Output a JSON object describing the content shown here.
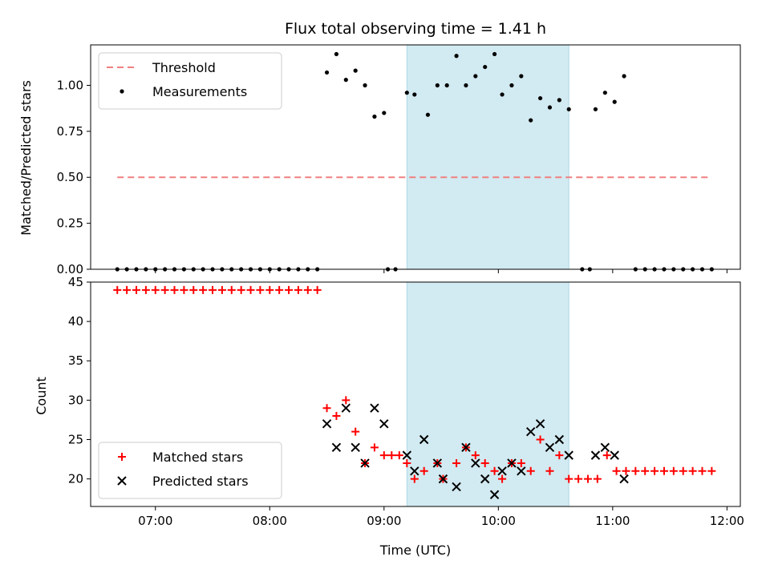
{
  "chart_data": [
    {
      "type": "scatter",
      "title": "Flux total observing time = 1.41 h",
      "xlabel": "",
      "ylabel": "Matched/Predicted stars",
      "xlim": [
        "06:26",
        "12:07"
      ],
      "ylim": [
        0,
        1.22
      ],
      "yticks": [
        "0.00",
        "0.25",
        "0.50",
        "0.75",
        "1.00"
      ],
      "grid": false,
      "legend_position": "top-left",
      "shaded_interval": {
        "start": "09:12",
        "end": "10:37",
        "color": "#add8e6"
      },
      "threshold": {
        "name": "Threshold",
        "value": 0.5,
        "x_start": "06:40",
        "x_end": "11:52",
        "style": "dashed",
        "color": "#f08080"
      },
      "series": [
        {
          "name": "Measurements",
          "marker": "dot",
          "color": "#000000",
          "points": [
            [
              "06:40",
              0
            ],
            [
              "06:45",
              0
            ],
            [
              "06:50",
              0
            ],
            [
              "06:55",
              0
            ],
            [
              "07:00",
              0
            ],
            [
              "07:05",
              0
            ],
            [
              "07:10",
              0
            ],
            [
              "07:15",
              0
            ],
            [
              "07:20",
              0
            ],
            [
              "07:25",
              0
            ],
            [
              "07:30",
              0
            ],
            [
              "07:35",
              0
            ],
            [
              "07:40",
              0
            ],
            [
              "07:45",
              0
            ],
            [
              "07:50",
              0
            ],
            [
              "07:55",
              0
            ],
            [
              "08:00",
              0
            ],
            [
              "08:05",
              0
            ],
            [
              "08:10",
              0
            ],
            [
              "08:15",
              0
            ],
            [
              "08:20",
              0
            ],
            [
              "08:25",
              0
            ],
            [
              "08:30",
              1.07
            ],
            [
              "08:35",
              1.17
            ],
            [
              "08:40",
              1.03
            ],
            [
              "08:45",
              1.08
            ],
            [
              "08:50",
              1.0
            ],
            [
              "08:55",
              0.83
            ],
            [
              "09:00",
              0.85
            ],
            [
              "09:02",
              0
            ],
            [
              "09:06",
              0
            ],
            [
              "09:12",
              0.96
            ],
            [
              "09:16",
              0.95
            ],
            [
              "09:23",
              0.84
            ],
            [
              "09:28",
              1.0
            ],
            [
              "09:33",
              1.0
            ],
            [
              "09:38",
              1.16
            ],
            [
              "09:43",
              1.0
            ],
            [
              "09:48",
              1.05
            ],
            [
              "09:53",
              1.1
            ],
            [
              "09:58",
              1.17
            ],
            [
              "10:02",
              0.95
            ],
            [
              "10:07",
              1.0
            ],
            [
              "10:12",
              1.05
            ],
            [
              "10:17",
              0.81
            ],
            [
              "10:22",
              0.93
            ],
            [
              "10:27",
              0.88
            ],
            [
              "10:32",
              0.92
            ],
            [
              "10:37",
              0.87
            ],
            [
              "10:44",
              0
            ],
            [
              "10:48",
              0
            ],
            [
              "10:51",
              0.87
            ],
            [
              "10:56",
              0.96
            ],
            [
              "11:01",
              0.91
            ],
            [
              "11:06",
              1.05
            ],
            [
              "11:12",
              0
            ],
            [
              "11:17",
              0
            ],
            [
              "11:22",
              0
            ],
            [
              "11:27",
              0
            ],
            [
              "11:32",
              0
            ],
            [
              "11:37",
              0
            ],
            [
              "11:42",
              0
            ],
            [
              "11:47",
              0
            ],
            [
              "11:52",
              0
            ]
          ]
        }
      ]
    },
    {
      "type": "scatter",
      "title": "",
      "xlabel": "Time (UTC)",
      "ylabel": "Count",
      "xlim": [
        "06:26",
        "12:07"
      ],
      "ylim": [
        16.5,
        45
      ],
      "xticks": [
        "07:00",
        "08:00",
        "09:00",
        "10:00",
        "11:00",
        "12:00"
      ],
      "yticks": [
        "20",
        "25",
        "30",
        "35",
        "40",
        "45"
      ],
      "grid": false,
      "legend_position": "bottom-left",
      "shaded_interval": {
        "start": "09:12",
        "end": "10:37",
        "color": "#add8e6"
      },
      "series": [
        {
          "name": "Matched stars",
          "marker": "plus",
          "color": "#ff0000",
          "points": [
            [
              "06:40",
              44
            ],
            [
              "06:45",
              44
            ],
            [
              "06:50",
              44
            ],
            [
              "06:55",
              44
            ],
            [
              "07:00",
              44
            ],
            [
              "07:05",
              44
            ],
            [
              "07:10",
              44
            ],
            [
              "07:15",
              44
            ],
            [
              "07:20",
              44
            ],
            [
              "07:25",
              44
            ],
            [
              "07:30",
              44
            ],
            [
              "07:35",
              44
            ],
            [
              "07:40",
              44
            ],
            [
              "07:45",
              44
            ],
            [
              "07:50",
              44
            ],
            [
              "07:55",
              44
            ],
            [
              "08:00",
              44
            ],
            [
              "08:05",
              44
            ],
            [
              "08:10",
              44
            ],
            [
              "08:15",
              44
            ],
            [
              "08:20",
              44
            ],
            [
              "08:25",
              44
            ],
            [
              "08:30",
              29
            ],
            [
              "08:35",
              28
            ],
            [
              "08:40",
              30
            ],
            [
              "08:45",
              26
            ],
            [
              "08:50",
              22
            ],
            [
              "08:55",
              24
            ],
            [
              "09:00",
              23
            ],
            [
              "09:04",
              23
            ],
            [
              "09:08",
              23
            ],
            [
              "09:12",
              22
            ],
            [
              "09:16",
              20
            ],
            [
              "09:21",
              21
            ],
            [
              "09:28",
              22
            ],
            [
              "09:31",
              20
            ],
            [
              "09:38",
              22
            ],
            [
              "09:43",
              24
            ],
            [
              "09:48",
              23
            ],
            [
              "09:53",
              22
            ],
            [
              "09:58",
              21
            ],
            [
              "10:02",
              20
            ],
            [
              "10:07",
              22
            ],
            [
              "10:12",
              22
            ],
            [
              "10:17",
              21
            ],
            [
              "10:22",
              25
            ],
            [
              "10:27",
              21
            ],
            [
              "10:32",
              23
            ],
            [
              "10:37",
              20
            ],
            [
              "10:42",
              20
            ],
            [
              "10:47",
              20
            ],
            [
              "10:52",
              20
            ],
            [
              "10:57",
              23
            ],
            [
              "11:02",
              21
            ],
            [
              "11:07",
              21
            ],
            [
              "11:12",
              21
            ],
            [
              "11:17",
              21
            ],
            [
              "11:22",
              21
            ],
            [
              "11:27",
              21
            ],
            [
              "11:32",
              21
            ],
            [
              "11:37",
              21
            ],
            [
              "11:42",
              21
            ],
            [
              "11:47",
              21
            ],
            [
              "11:52",
              21
            ]
          ]
        },
        {
          "name": "Predicted stars",
          "marker": "x",
          "color": "#000000",
          "points": [
            [
              "08:30",
              27
            ],
            [
              "08:35",
              24
            ],
            [
              "08:40",
              29
            ],
            [
              "08:45",
              24
            ],
            [
              "08:50",
              22
            ],
            [
              "08:55",
              29
            ],
            [
              "09:00",
              27
            ],
            [
              "09:12",
              23
            ],
            [
              "09:16",
              21
            ],
            [
              "09:21",
              25
            ],
            [
              "09:28",
              22
            ],
            [
              "09:31",
              20
            ],
            [
              "09:38",
              19
            ],
            [
              "09:43",
              24
            ],
            [
              "09:48",
              22
            ],
            [
              "09:53",
              20
            ],
            [
              "09:58",
              18
            ],
            [
              "10:02",
              21
            ],
            [
              "10:07",
              22
            ],
            [
              "10:12",
              21
            ],
            [
              "10:17",
              26
            ],
            [
              "10:22",
              27
            ],
            [
              "10:27",
              24
            ],
            [
              "10:32",
              25
            ],
            [
              "10:37",
              23
            ],
            [
              "10:51",
              23
            ],
            [
              "10:56",
              24
            ],
            [
              "11:01",
              23
            ],
            [
              "11:06",
              20
            ]
          ]
        }
      ]
    }
  ]
}
